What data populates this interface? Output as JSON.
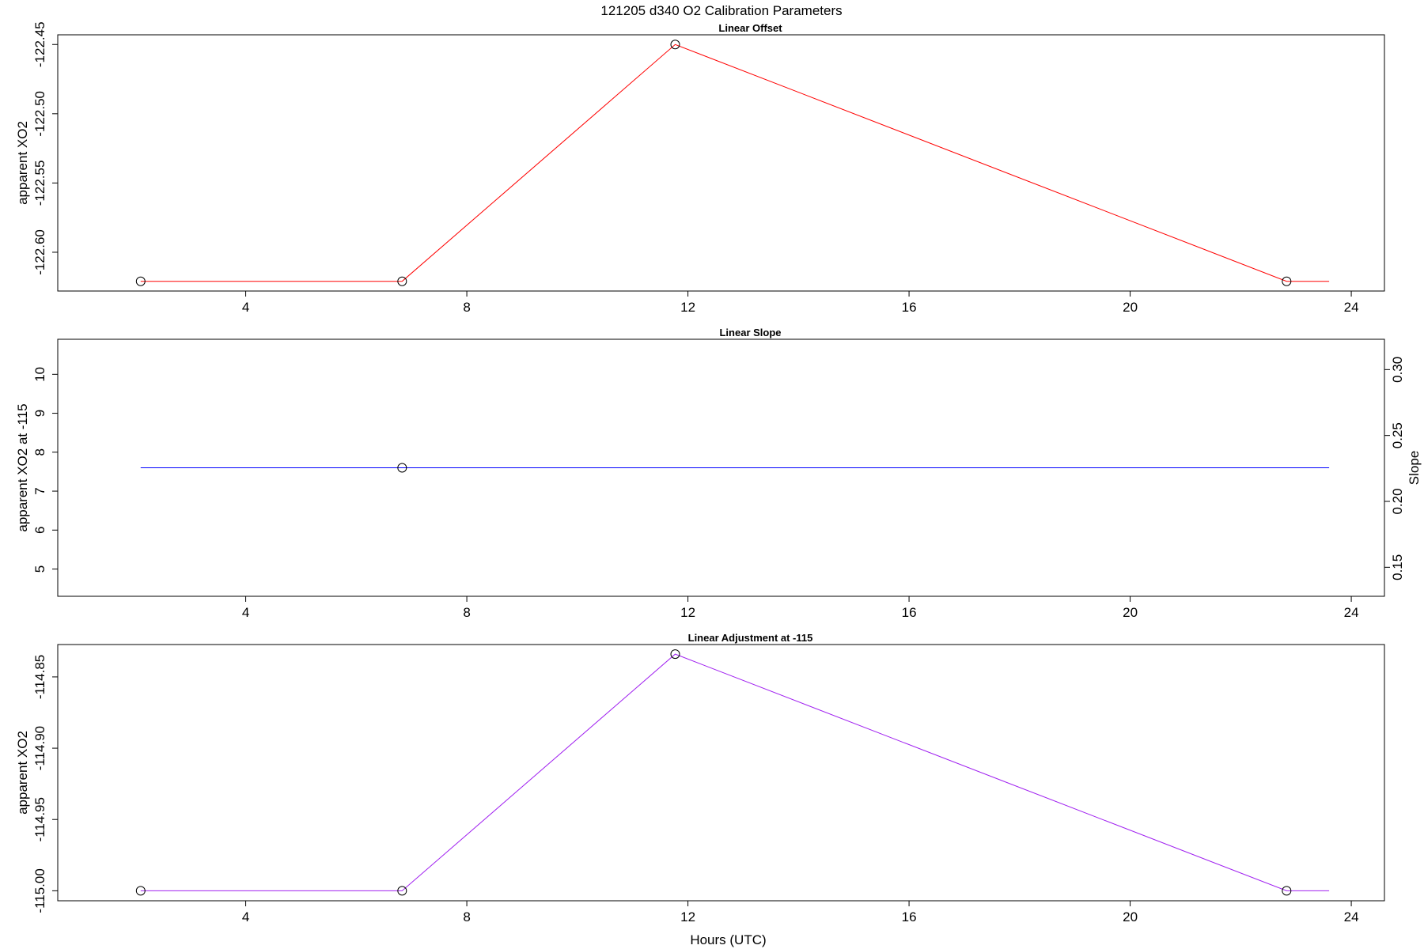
{
  "figure_title": "121205   d340   O2 Calibration Parameters",
  "chart_data": [
    {
      "type": "line",
      "title": "Linear Offset",
      "xlabel": "",
      "ylabel": "apparent XO2",
      "xlim": [
        0.6,
        24.6
      ],
      "ylim": [
        -122.628,
        -122.443
      ],
      "x_ticks": [
        4,
        8,
        12,
        16,
        20,
        24
      ],
      "x_tick_labels": [
        "4",
        "8",
        "12",
        "16",
        "20",
        "24"
      ],
      "y_ticks": [
        -122.6,
        -122.55,
        -122.5,
        -122.45
      ],
      "y_tick_labels": [
        "-122.60",
        "-122.55",
        "-122.50",
        "-122.45"
      ],
      "line_color": "#ff0000",
      "marker_color": "#000000",
      "line": {
        "x": [
          2.1,
          6.83,
          11.77,
          22.83,
          23.6
        ],
        "y": [
          -122.621,
          -122.621,
          -122.45,
          -122.621,
          -122.621
        ]
      },
      "points": {
        "x": [
          2.1,
          6.83,
          11.77,
          22.83
        ],
        "y": [
          -122.621,
          -122.621,
          -122.45,
          -122.621
        ]
      }
    },
    {
      "type": "line",
      "title": "Linear Slope",
      "xlabel": "",
      "ylabel": "apparent XO2 at -115",
      "y2label": "Slope",
      "xlim": [
        0.6,
        24.6
      ],
      "ylim": [
        4.3,
        10.9
      ],
      "x_ticks": [
        4,
        8,
        12,
        16,
        20,
        24
      ],
      "x_tick_labels": [
        "4",
        "8",
        "12",
        "16",
        "20",
        "24"
      ],
      "y_ticks": [
        5,
        6,
        7,
        8,
        9,
        10
      ],
      "y_tick_labels": [
        "5",
        "6",
        "7",
        "8",
        "9",
        "10"
      ],
      "y2lim": [
        0.128,
        0.323
      ],
      "y2_ticks": [
        0.15,
        0.2,
        0.25,
        0.3
      ],
      "y2_tick_labels": [
        "0.15",
        "0.20",
        "0.25",
        "0.30"
      ],
      "line_color": "#0000ff",
      "marker_color": "#000000",
      "line": {
        "x": [
          2.1,
          23.6
        ],
        "y": [
          7.6,
          7.6
        ]
      },
      "points": {
        "x": [
          6.83
        ],
        "y": [
          7.6
        ]
      }
    },
    {
      "type": "line",
      "title": "Linear Adjustment at -115",
      "xlabel": "Hours (UTC)",
      "ylabel": "apparent XO2",
      "xlim": [
        0.6,
        24.6
      ],
      "ylim": [
        -115.007,
        -114.8273
      ],
      "x_ticks": [
        4,
        8,
        12,
        16,
        20,
        24
      ],
      "x_tick_labels": [
        "4",
        "8",
        "12",
        "16",
        "20",
        "24"
      ],
      "y_ticks": [
        -115.0,
        -114.95,
        -114.9,
        -114.85
      ],
      "y_tick_labels": [
        "-115.00",
        "-114.95",
        "-114.90",
        "-114.85"
      ],
      "line_color": "#a020f0",
      "marker_color": "#000000",
      "line": {
        "x": [
          2.1,
          6.83,
          11.77,
          22.83,
          23.6
        ],
        "y": [
          -115.0,
          -115.0,
          -114.834,
          -115.0,
          -115.0
        ]
      },
      "points": {
        "x": [
          2.1,
          6.83,
          11.77,
          22.83
        ],
        "y": [
          -115.0,
          -115.0,
          -114.834,
          -115.0
        ]
      }
    }
  ]
}
